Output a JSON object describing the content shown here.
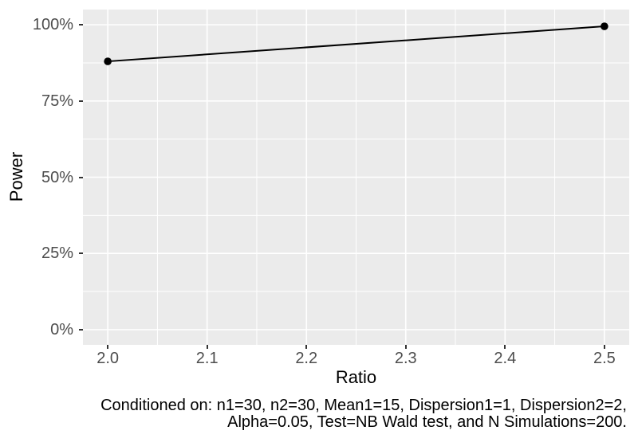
{
  "chart_data": {
    "type": "line",
    "title": "",
    "xlabel": "Ratio",
    "ylabel": "Power",
    "caption": "Conditioned on: n1=30, n2=30, Mean1=15, Dispersion1=1, Dispersion2=2, Alpha=0.05, Test=NB Wald test, and N Simulations=200.",
    "caption_lines": [
      "Conditioned on: n1=30, n2=30, Mean1=15, Dispersion1=1, Dispersion2=2,",
      "Alpha=0.05, Test=NB Wald test, and N Simulations=200."
    ],
    "series": [
      {
        "name": "Power",
        "x": [
          2.0,
          2.5
        ],
        "y_percent": [
          88,
          99.5
        ]
      }
    ],
    "xlim": [
      1.975,
      2.525
    ],
    "ylim_percent": [
      -5,
      105
    ],
    "x_ticks": {
      "values": [
        2.0,
        2.1,
        2.2,
        2.3,
        2.4,
        2.5
      ],
      "labels": [
        "2.0",
        "2.1",
        "2.2",
        "2.3",
        "2.4",
        "2.5"
      ]
    },
    "y_ticks": {
      "values": [
        0,
        25,
        50,
        75,
        100
      ],
      "labels": [
        "0%",
        "25%",
        "50%",
        "75%",
        "100%"
      ]
    },
    "x_minor_ticks": [
      2.05,
      2.15,
      2.25,
      2.35,
      2.45
    ],
    "y_minor_ticks": [
      12.5,
      37.5,
      62.5,
      87.5
    ],
    "grid": true,
    "legend": false,
    "colors": {
      "series": "#000000",
      "panel_bg": "#EBEBEB",
      "grid": "#FFFFFF",
      "tick_text": "#4D4D4D",
      "tick_mark": "#333333",
      "title_text": "#000000"
    }
  }
}
